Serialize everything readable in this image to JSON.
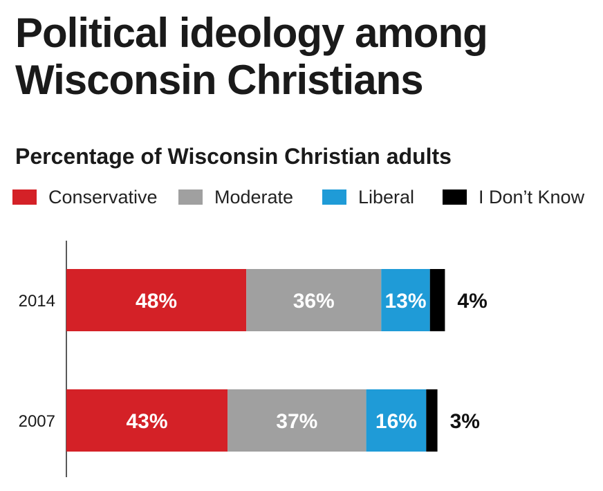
{
  "title": "Political ideology among Wisconsin Christians",
  "subtitle": "Percentage of Wisconsin Christian adults",
  "legend": [
    {
      "label": "Conservative",
      "color": "#d42127"
    },
    {
      "label": "Moderate",
      "color": "#a0a0a0"
    },
    {
      "label": "Liberal",
      "color": "#1f9bd7"
    },
    {
      "label": "I Don’t Know",
      "color": "#000000"
    }
  ],
  "chart_data": {
    "type": "bar",
    "orientation": "horizontal",
    "stacked": true,
    "title": "Political ideology among Wisconsin Christians",
    "subtitle": "Percentage of Wisconsin Christian adults",
    "categories": [
      "2014",
      "2007"
    ],
    "series": [
      {
        "name": "Conservative",
        "values": [
          48,
          43
        ],
        "labels": [
          "48%",
          "43%"
        ],
        "color": "#d42127"
      },
      {
        "name": "Moderate",
        "values": [
          36,
          37
        ],
        "labels": [
          "36%",
          "37%"
        ],
        "color": "#a0a0a0"
      },
      {
        "name": "Liberal",
        "values": [
          13,
          16
        ],
        "labels": [
          "13%",
          "16%"
        ],
        "color": "#1f9bd7"
      },
      {
        "name": "I Don’t Know",
        "values": [
          4,
          3
        ],
        "labels": [
          "4%",
          "3%"
        ],
        "color": "#000000"
      }
    ],
    "xlim": [
      0,
      100
    ],
    "legend_position": "top",
    "grid": false
  }
}
